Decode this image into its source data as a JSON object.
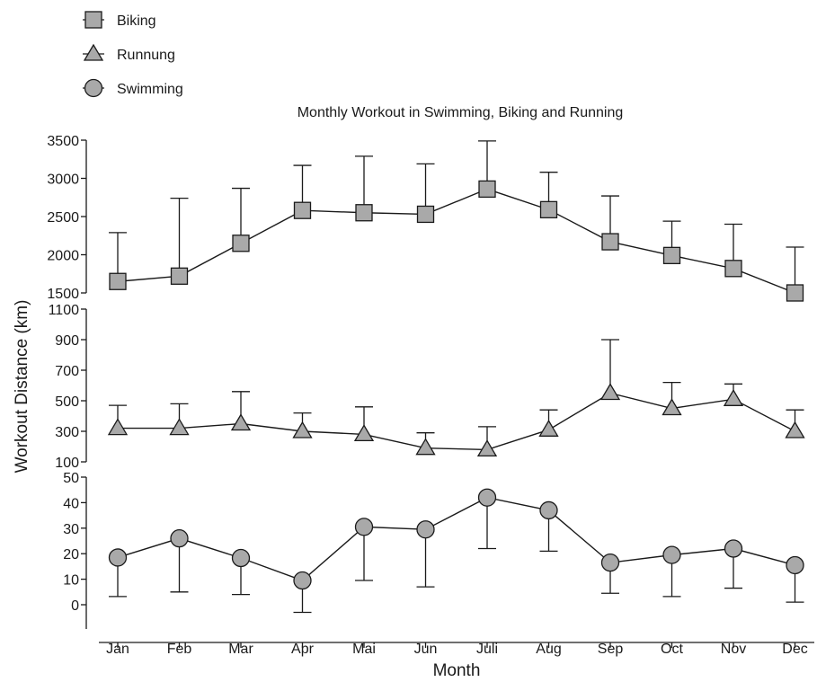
{
  "chart_data": {
    "type": "line",
    "title": "Monthly Workout in Swimming, Biking and Running",
    "xlabel": "Month",
    "ylabel": "Workout Distance (km)",
    "categories": [
      "Jan",
      "Feb",
      "Mar",
      "Apr",
      "Mai",
      "Jun",
      "Juli",
      "Aug",
      "Sep",
      "Oct",
      "Nov",
      "Dec"
    ],
    "legend": {
      "placement": "top-left",
      "entries": [
        {
          "label": "Biking",
          "marker": "square"
        },
        {
          "label": "Runnung",
          "marker": "triangle"
        },
        {
          "label": "Swimming",
          "marker": "circle"
        }
      ]
    },
    "marker_fill": "#a9a9a9",
    "line_color": "#1a1a1a",
    "grid": false,
    "panels": [
      {
        "series": "Biking",
        "marker": "square",
        "ylim": [
          1500,
          3500
        ],
        "yticks": [
          1500,
          2000,
          2500,
          3000,
          3500
        ],
        "values": [
          1650,
          1720,
          2150,
          2580,
          2550,
          2530,
          2860,
          2590,
          2170,
          1990,
          1820,
          1500
        ],
        "error_upper": [
          2290,
          2740,
          2870,
          3170,
          3290,
          3190,
          3490,
          3080,
          2770,
          2440,
          2400,
          2100
        ]
      },
      {
        "series": "Runnung",
        "marker": "triangle",
        "ylim": [
          100,
          1100
        ],
        "yticks": [
          100,
          300,
          500,
          700,
          900,
          1100
        ],
        "values": [
          320,
          320,
          350,
          300,
          280,
          190,
          180,
          310,
          550,
          450,
          510,
          300
        ],
        "error_upper": [
          470,
          480,
          560,
          420,
          460,
          290,
          330,
          440,
          900,
          620,
          610,
          440
        ]
      },
      {
        "series": "Swimming",
        "marker": "circle",
        "ylim": [
          -5,
          50
        ],
        "yticks": [
          0,
          10,
          20,
          30,
          40,
          50
        ],
        "values": [
          18.5,
          26,
          18.3,
          9.5,
          30.5,
          29.5,
          42,
          37,
          16.5,
          19.5,
          22,
          15.5
        ],
        "error_lower": [
          3.2,
          5,
          4,
          -3,
          9.5,
          7,
          22,
          21,
          4.5,
          3.2,
          6.5,
          1
        ]
      }
    ]
  }
}
